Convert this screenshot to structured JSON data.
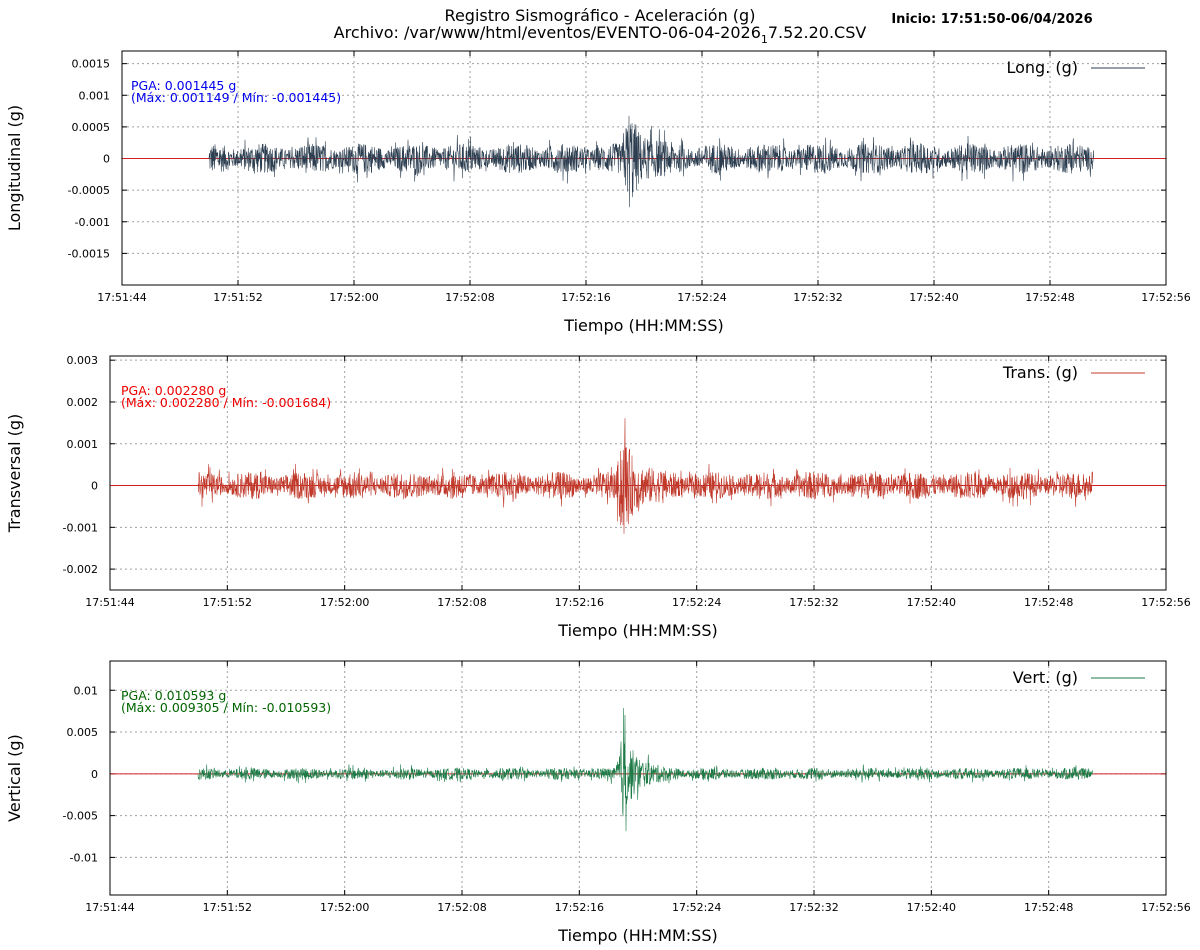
{
  "header": {
    "title_line1": "Registro Sismográfico - Aceleración (g)",
    "title_line2_prefix": "Archivo: /var/www/html/eventos/EVENTO-06-04-2026",
    "title_line2_sub": "1",
    "title_line2_suffix": "7.52.20.CSV",
    "inicio": "Inicio: 17:51:50-06/04/2026"
  },
  "colors": {
    "zero_line": "#d02020",
    "long": "#2c3e50",
    "trans": "#c0392b",
    "vert": "#1e7b47",
    "ann_long": "#0000ee",
    "ann_trans": "#ee0000",
    "ann_vert": "#006400"
  },
  "chart_data": [
    {
      "type": "line",
      "key": "long",
      "series_name": "Long. (g)",
      "ylabel": "Longitudinal (g)",
      "xlabel": "Tiempo (HH:MM:SS)",
      "x_ticks": [
        "17:51:44",
        "17:51:52",
        "17:52:00",
        "17:52:08",
        "17:52:16",
        "17:52:24",
        "17:52:32",
        "17:52:40",
        "17:52:48",
        "17:52:56"
      ],
      "xlim_seconds_of_day": [
        64304,
        64376
      ],
      "data_start": "17:51:50",
      "data_end": "17:52:51",
      "y_ticks": [
        0.0015,
        0.001,
        0.0005,
        0,
        -0.0005,
        -0.001,
        -0.0015
      ],
      "y_tick_labels": [
        "0.0015",
        "0.001",
        "0.0005",
        "0",
        "-0.0005",
        "-0.001",
        "-0.0015"
      ],
      "ylim": [
        -0.002,
        0.0017
      ],
      "pga_text": "PGA: 0.001445 g",
      "maxmin_text": "(Máx: 0.001149 / Mín: -0.001445)",
      "pga": 0.001445,
      "max": 0.001149,
      "min": -0.001445,
      "noise_amplitude": 0.0004,
      "event_time": "17:52:19",
      "event_peak": 0.00145
    },
    {
      "type": "line",
      "key": "trans",
      "series_name": "Trans. (g)",
      "ylabel": "Transversal (g)",
      "xlabel": "Tiempo (HH:MM:SS)",
      "x_ticks": [
        "17:51:44",
        "17:51:52",
        "17:52:00",
        "17:52:08",
        "17:52:16",
        "17:52:24",
        "17:52:32",
        "17:52:40",
        "17:52:48",
        "17:52:56"
      ],
      "xlim_seconds_of_day": [
        64304,
        64376
      ],
      "data_start": "17:51:50",
      "data_end": "17:52:51",
      "y_ticks": [
        0.003,
        0.002,
        0.001,
        0,
        -0.001,
        -0.002
      ],
      "y_tick_labels": [
        "0.003",
        "0.002",
        "0.001",
        "0",
        "-0.001",
        "-0.002"
      ],
      "ylim": [
        -0.0025,
        0.0031
      ],
      "pga_text": "PGA: 0.002280 g",
      "maxmin_text": "(Máx: 0.002280 / Mín: -0.001684)",
      "pga": 0.00228,
      "max": 0.00228,
      "min": -0.001684,
      "noise_amplitude": 0.00055,
      "event_time": "17:52:19",
      "event_peak": 0.00228
    },
    {
      "type": "line",
      "key": "vert",
      "series_name": "Vert. (g)",
      "ylabel": "Vertical (g)",
      "xlabel": "Tiempo (HH:MM:SS)",
      "x_ticks": [
        "17:51:44",
        "17:51:52",
        "17:52:00",
        "17:52:08",
        "17:52:16",
        "17:52:24",
        "17:52:32",
        "17:52:40",
        "17:52:48",
        "17:52:56"
      ],
      "xlim_seconds_of_day": [
        64304,
        64376
      ],
      "data_start": "17:51:50",
      "data_end": "17:52:51",
      "y_ticks": [
        0.01,
        0.005,
        0,
        -0.005,
        -0.01
      ],
      "y_tick_labels": [
        "0.01",
        "0.005",
        "0",
        "-0.005",
        "-0.01"
      ],
      "ylim": [
        -0.0145,
        0.0135
      ],
      "pga_text": "PGA: 0.010593 g",
      "maxmin_text": "(Máx: 0.009305 / Mín: -0.010593)",
      "pga": 0.010593,
      "max": 0.009305,
      "min": -0.010593,
      "noise_amplitude": 0.0012,
      "event_time": "17:52:19",
      "event_peak": 0.0095
    }
  ]
}
